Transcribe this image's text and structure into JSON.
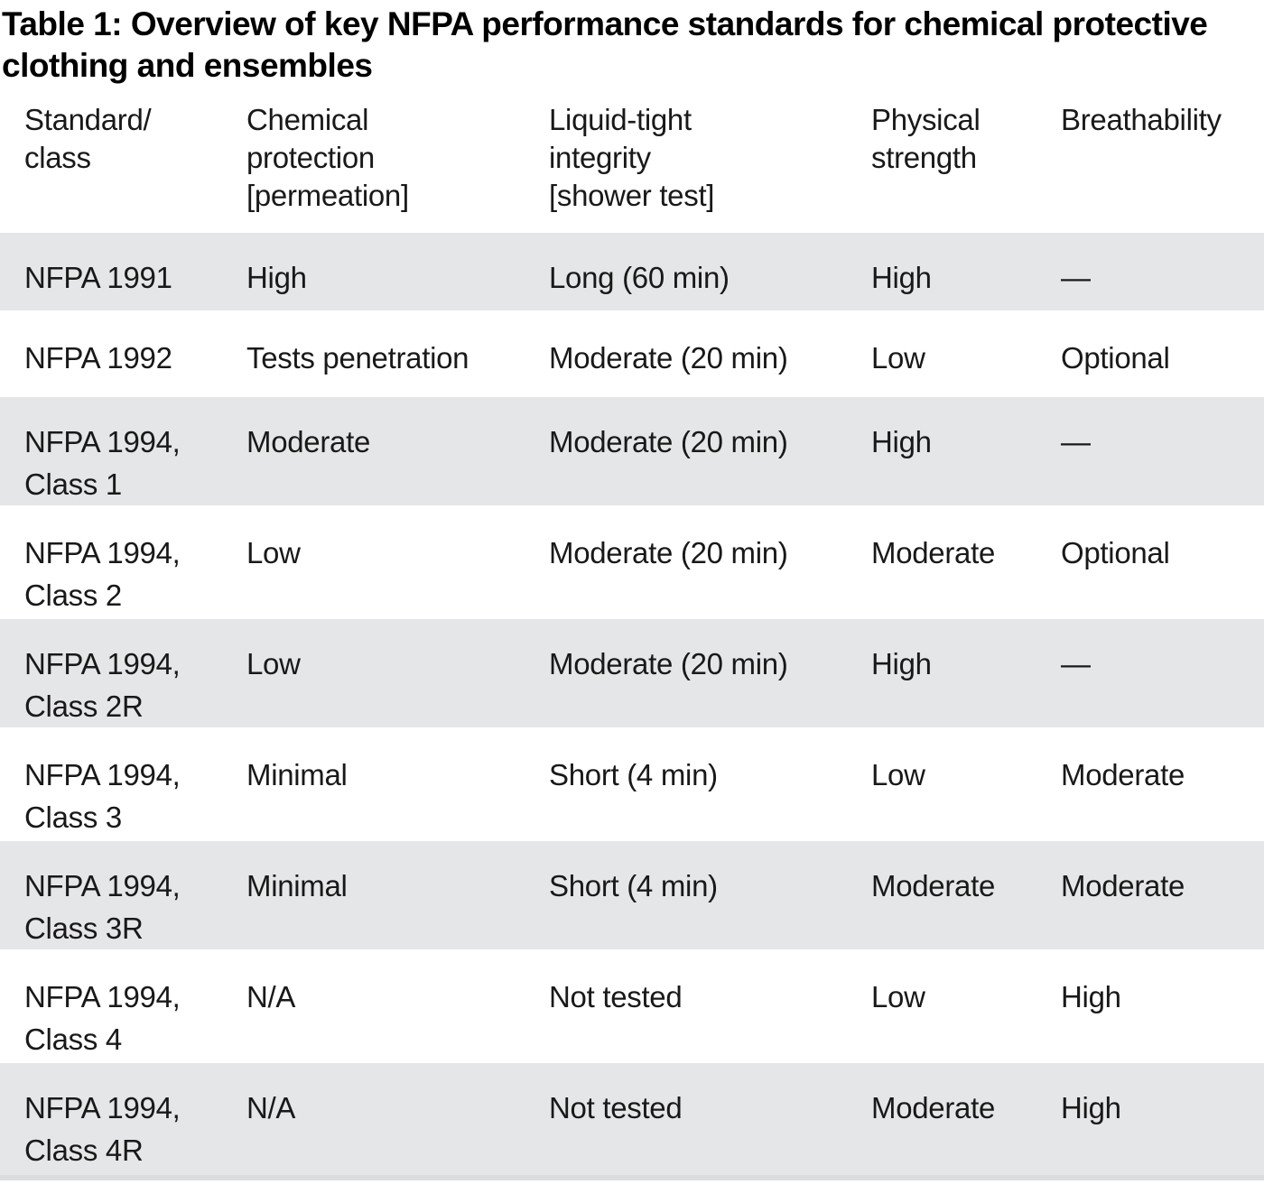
{
  "title": "Table 1: Overview of key NFPA performance standards for chemical protective\nclothing and ensembles",
  "colors": {
    "row_alt_background": "#e5e6e8",
    "text": "#191919",
    "title_text": "#000000",
    "bottom_edge": "#dadcde"
  },
  "table": {
    "columns": [
      "Standard/\nclass",
      "Chemical\nprotection\n[permeation]",
      "Liquid-tight\nintegrity\n[shower test]",
      "Physical\nstrength",
      "Breathability"
    ],
    "rows": [
      {
        "standard": "NFPA 1991",
        "chemical_protection": "High",
        "liquid_tight_integrity": "Long (60 min)",
        "physical_strength": "High",
        "breathability": "—"
      },
      {
        "standard": "NFPA 1992",
        "chemical_protection": "Tests penetration",
        "liquid_tight_integrity": "Moderate (20 min)",
        "physical_strength": "Low",
        "breathability": "Optional"
      },
      {
        "standard": "NFPA 1994,\nClass 1",
        "chemical_protection": "Moderate",
        "liquid_tight_integrity": "Moderate (20 min)",
        "physical_strength": "High",
        "breathability": "—"
      },
      {
        "standard": "NFPA 1994,\nClass 2",
        "chemical_protection": "Low",
        "liquid_tight_integrity": "Moderate (20 min)",
        "physical_strength": "Moderate",
        "breathability": "Optional"
      },
      {
        "standard": "NFPA 1994,\nClass 2R",
        "chemical_protection": "Low",
        "liquid_tight_integrity": "Moderate (20 min)",
        "physical_strength": "High",
        "breathability": "—"
      },
      {
        "standard": "NFPA 1994,\nClass 3",
        "chemical_protection": "Minimal",
        "liquid_tight_integrity": "Short (4 min)",
        "physical_strength": "Low",
        "breathability": "Moderate"
      },
      {
        "standard": "NFPA 1994,\nClass 3R",
        "chemical_protection": "Minimal",
        "liquid_tight_integrity": "Short (4 min)",
        "physical_strength": "Moderate",
        "breathability": "Moderate"
      },
      {
        "standard": "NFPA 1994,\nClass 4",
        "chemical_protection": "N/A",
        "liquid_tight_integrity": "Not tested",
        "physical_strength": "Low",
        "breathability": "High"
      },
      {
        "standard": "NFPA 1994,\nClass 4R",
        "chemical_protection": "N/A",
        "liquid_tight_integrity": "Not tested",
        "physical_strength": "Moderate",
        "breathability": "High"
      }
    ]
  }
}
